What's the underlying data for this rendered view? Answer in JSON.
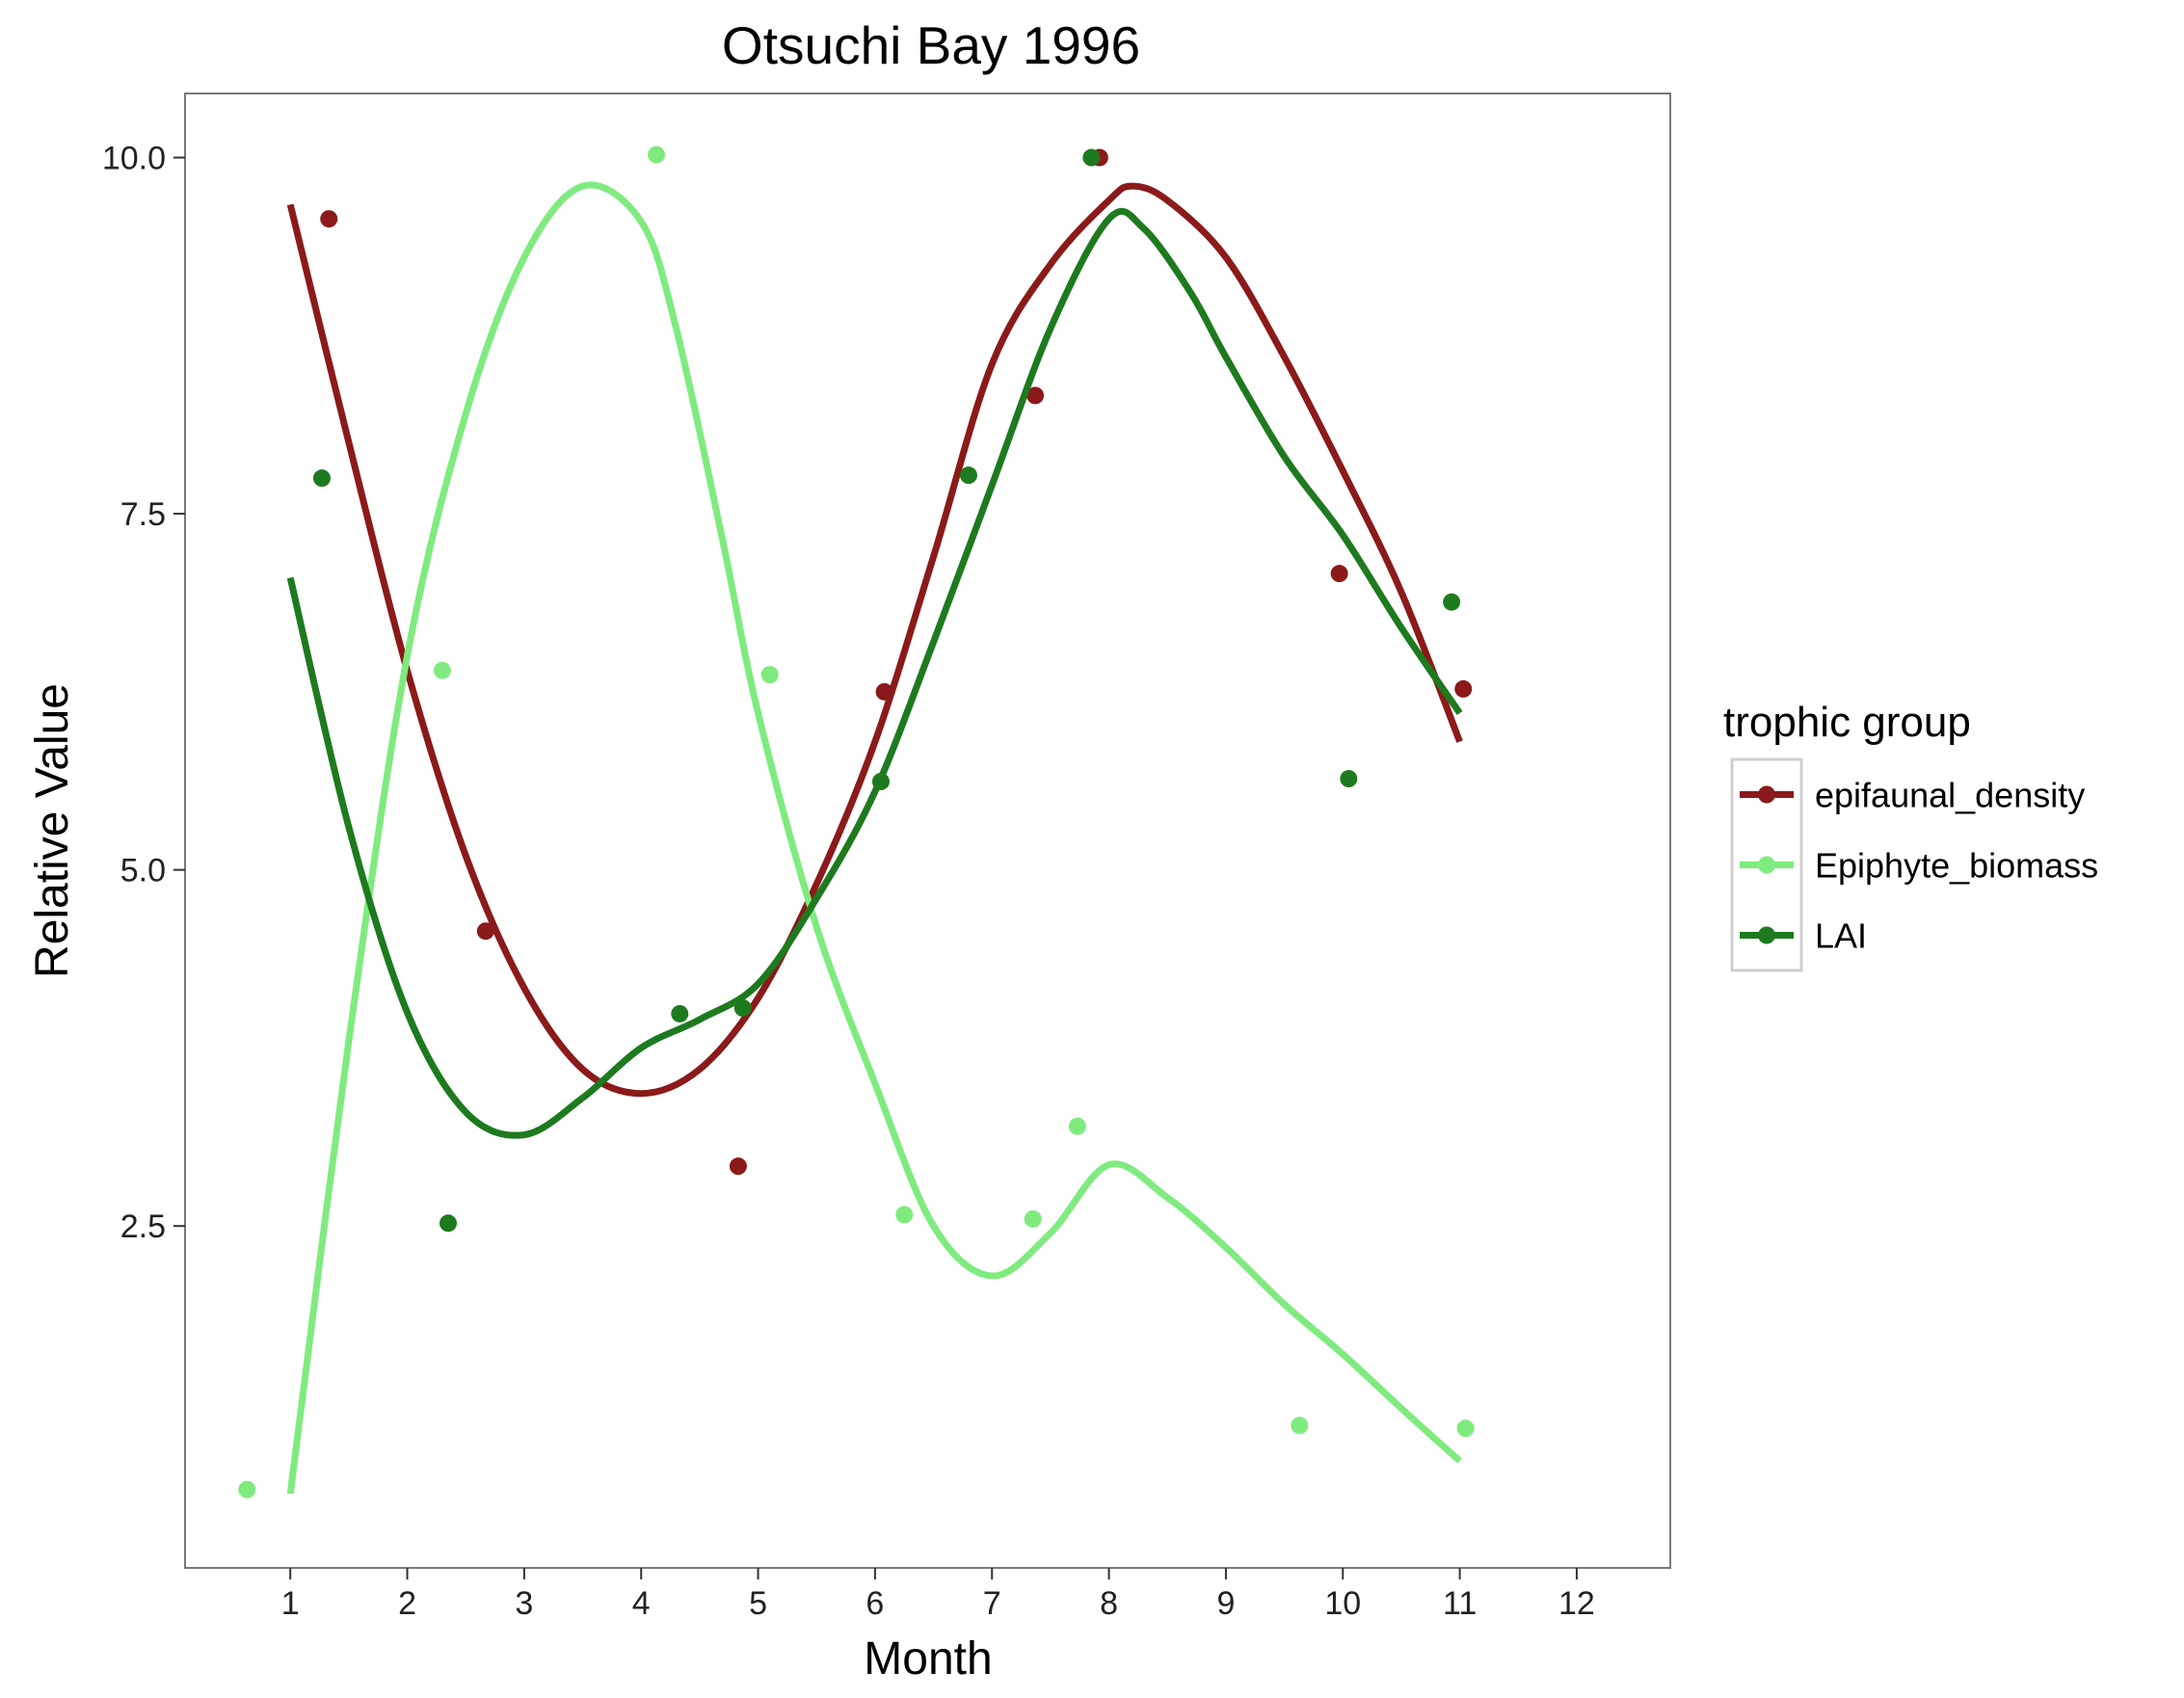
{
  "chart_data": {
    "type": "scatter",
    "title": "Otsuchi Bay 1996",
    "xlabel": "Month",
    "ylabel": "Relative Value",
    "xlim": [
      0.1,
      12.8
    ],
    "ylim": [
      0.1,
      10.45
    ],
    "x_ticks": [
      "1",
      "2",
      "3",
      "4",
      "5",
      "6",
      "7",
      "8",
      "9",
      "10",
      "11",
      "12"
    ],
    "y_ticks": [
      "2.5",
      "5.0",
      "7.5",
      "10.0"
    ],
    "y_tick_values": [
      2.5,
      5.0,
      7.5,
      10.0
    ],
    "grid": false,
    "legend": {
      "title": "trophic group",
      "position": "right"
    },
    "series": [
      {
        "name": "epifaunal_density",
        "color": "#8B1A1A",
        "points": [
          {
            "x": 1.33,
            "y": 9.57
          },
          {
            "x": 2.67,
            "y": 4.57
          },
          {
            "x": 4.83,
            "y": 2.92
          },
          {
            "x": 6.08,
            "y": 6.25
          },
          {
            "x": 7.37,
            "y": 8.33
          },
          {
            "x": 7.92,
            "y": 10.0
          },
          {
            "x": 9.97,
            "y": 7.08
          },
          {
            "x": 11.03,
            "y": 6.27
          }
        ],
        "smooth": [
          {
            "x": 1.0,
            "y": 9.67
          },
          {
            "x": 1.5,
            "y": 8.0
          },
          {
            "x": 2.0,
            "y": 6.4
          },
          {
            "x": 2.5,
            "y": 5.1
          },
          {
            "x": 3.0,
            "y": 4.17
          },
          {
            "x": 3.5,
            "y": 3.6
          },
          {
            "x": 4.0,
            "y": 3.43
          },
          {
            "x": 4.5,
            "y": 3.6
          },
          {
            "x": 5.0,
            "y": 4.1
          },
          {
            "x": 5.5,
            "y": 4.9
          },
          {
            "x": 6.0,
            "y": 5.9
          },
          {
            "x": 6.5,
            "y": 7.2
          },
          {
            "x": 7.0,
            "y": 8.55
          },
          {
            "x": 7.5,
            "y": 9.25
          },
          {
            "x": 8.0,
            "y": 9.7
          },
          {
            "x": 8.2,
            "y": 9.8
          },
          {
            "x": 8.5,
            "y": 9.7
          },
          {
            "x": 9.0,
            "y": 9.3
          },
          {
            "x": 9.5,
            "y": 8.6
          },
          {
            "x": 10.0,
            "y": 7.8
          },
          {
            "x": 10.5,
            "y": 6.95
          },
          {
            "x": 11.0,
            "y": 5.9
          }
        ]
      },
      {
        "name": "Epiphyte_biomass",
        "color": "#7FEB7F",
        "points": [
          {
            "x": 0.63,
            "y": 0.65
          },
          {
            "x": 2.3,
            "y": 6.4
          },
          {
            "x": 4.13,
            "y": 10.02
          },
          {
            "x": 5.1,
            "y": 6.37
          },
          {
            "x": 6.25,
            "y": 2.58
          },
          {
            "x": 7.35,
            "y": 2.55
          },
          {
            "x": 7.73,
            "y": 3.2
          },
          {
            "x": 9.63,
            "y": 1.1
          },
          {
            "x": 11.05,
            "y": 1.08
          }
        ],
        "smooth": [
          {
            "x": 1.0,
            "y": 0.62
          },
          {
            "x": 1.5,
            "y": 3.8
          },
          {
            "x": 2.0,
            "y": 6.5
          },
          {
            "x": 2.5,
            "y": 8.2
          },
          {
            "x": 3.0,
            "y": 9.3
          },
          {
            "x": 3.5,
            "y": 9.8
          },
          {
            "x": 4.0,
            "y": 9.55
          },
          {
            "x": 4.3,
            "y": 8.8
          },
          {
            "x": 4.7,
            "y": 7.3
          },
          {
            "x": 5.0,
            "y": 6.1
          },
          {
            "x": 5.5,
            "y": 4.6
          },
          {
            "x": 6.0,
            "y": 3.5
          },
          {
            "x": 6.5,
            "y": 2.5
          },
          {
            "x": 7.0,
            "y": 2.15
          },
          {
            "x": 7.5,
            "y": 2.45
          },
          {
            "x": 8.0,
            "y": 2.93
          },
          {
            "x": 8.5,
            "y": 2.7
          },
          {
            "x": 9.0,
            "y": 2.35
          },
          {
            "x": 9.5,
            "y": 1.95
          },
          {
            "x": 10.0,
            "y": 1.6
          },
          {
            "x": 10.5,
            "y": 1.22
          },
          {
            "x": 11.0,
            "y": 0.85
          }
        ]
      },
      {
        "name": "LAI",
        "color": "#1E7A1E",
        "points": [
          {
            "x": 1.27,
            "y": 7.75
          },
          {
            "x": 2.35,
            "y": 2.52
          },
          {
            "x": 4.33,
            "y": 3.99
          },
          {
            "x": 4.87,
            "y": 4.03
          },
          {
            "x": 6.05,
            "y": 5.62
          },
          {
            "x": 6.8,
            "y": 7.77
          },
          {
            "x": 7.85,
            "y": 10.0
          },
          {
            "x": 10.05,
            "y": 5.64
          },
          {
            "x": 10.93,
            "y": 6.88
          }
        ],
        "smooth": [
          {
            "x": 1.0,
            "y": 7.05
          },
          {
            "x": 1.5,
            "y": 5.3
          },
          {
            "x": 2.0,
            "y": 4.0
          },
          {
            "x": 2.5,
            "y": 3.3
          },
          {
            "x": 3.0,
            "y": 3.14
          },
          {
            "x": 3.5,
            "y": 3.4
          },
          {
            "x": 4.0,
            "y": 3.75
          },
          {
            "x": 4.5,
            "y": 3.95
          },
          {
            "x": 5.0,
            "y": 4.2
          },
          {
            "x": 5.5,
            "y": 4.8
          },
          {
            "x": 6.0,
            "y": 5.55
          },
          {
            "x": 6.5,
            "y": 6.6
          },
          {
            "x": 7.0,
            "y": 7.7
          },
          {
            "x": 7.5,
            "y": 8.8
          },
          {
            "x": 8.0,
            "y": 9.57
          },
          {
            "x": 8.3,
            "y": 9.5
          },
          {
            "x": 8.7,
            "y": 9.05
          },
          {
            "x": 9.0,
            "y": 8.6
          },
          {
            "x": 9.5,
            "y": 7.9
          },
          {
            "x": 10.0,
            "y": 7.35
          },
          {
            "x": 10.5,
            "y": 6.7
          },
          {
            "x": 11.0,
            "y": 6.1
          }
        ]
      }
    ]
  }
}
